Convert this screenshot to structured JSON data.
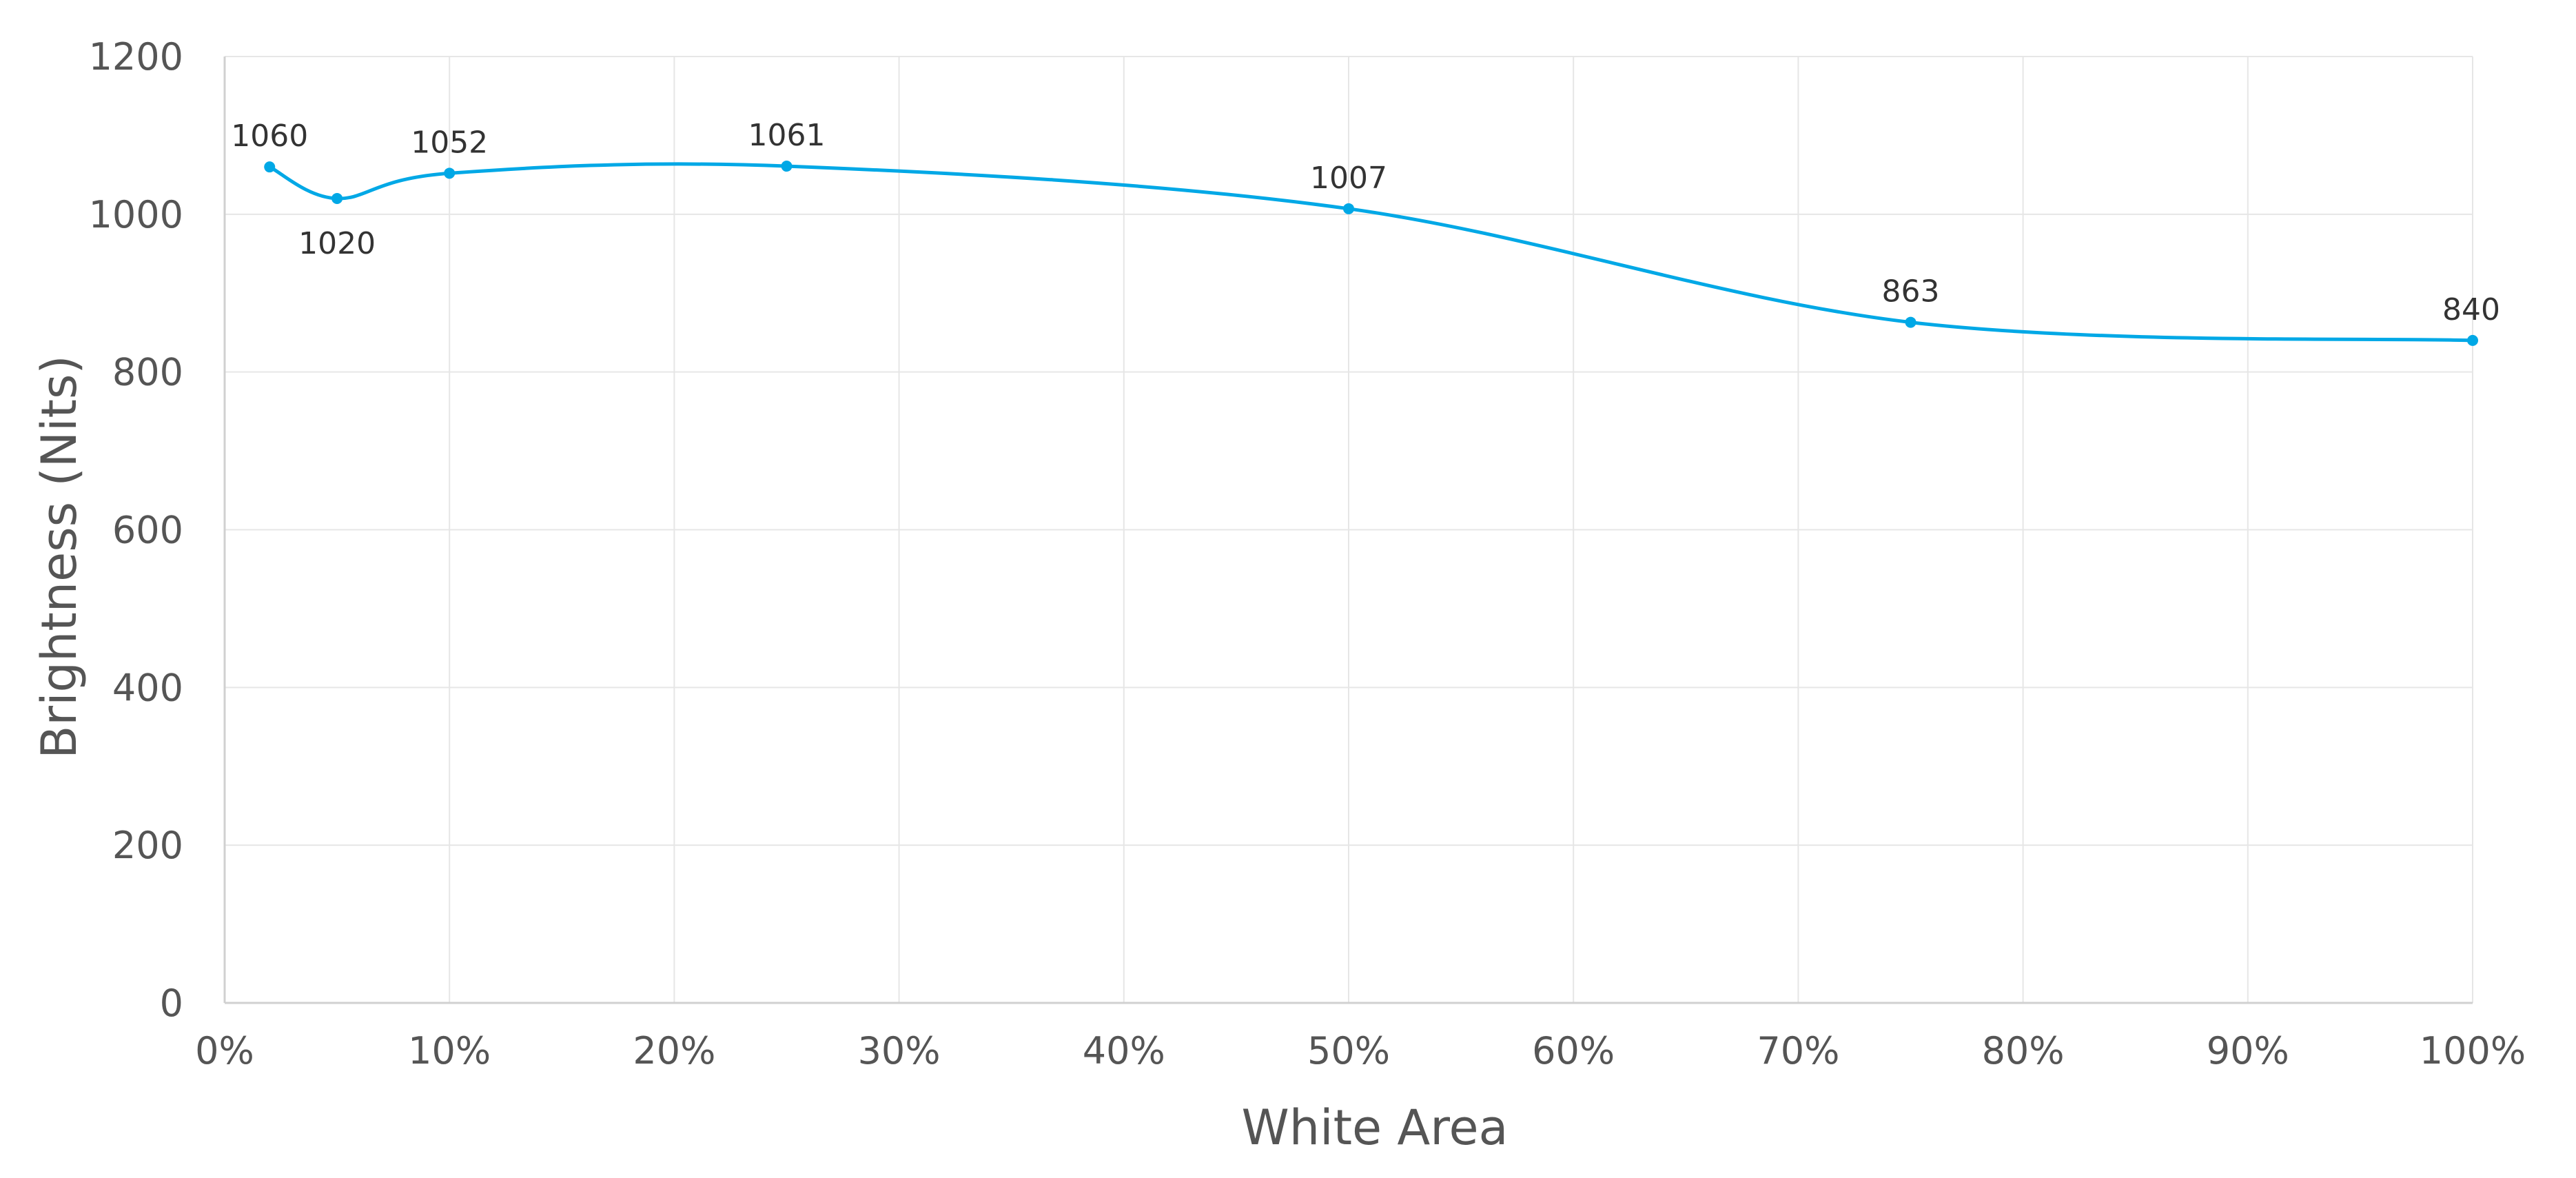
{
  "chart_data": {
    "type": "line",
    "title": "",
    "xlabel": "White Area",
    "ylabel": "Brightness (Nits)",
    "xlim": [
      0,
      100
    ],
    "ylim": [
      0,
      1200
    ],
    "x_ticks": [
      0,
      10,
      20,
      30,
      40,
      50,
      60,
      70,
      80,
      90,
      100
    ],
    "x_tick_labels": [
      "0%",
      "10%",
      "20%",
      "30%",
      "40%",
      "50%",
      "60%",
      "70%",
      "80%",
      "90%",
      "100%"
    ],
    "y_ticks": [
      0,
      200,
      400,
      600,
      800,
      1000,
      1200
    ],
    "y_tick_labels": [
      "0",
      "200",
      "400",
      "600",
      "800",
      "1000",
      "1200"
    ],
    "grid": true,
    "smooth": true,
    "legend": "none",
    "series": [
      {
        "color": "#00a8e6",
        "x": [
          2,
          5,
          10,
          25,
          50,
          75,
          100
        ],
        "values": [
          1060,
          1020,
          1052,
          1061,
          1007,
          863,
          840
        ],
        "data_labels": [
          "1060",
          "1020",
          "1052",
          "1061",
          "1007",
          "863",
          "840"
        ],
        "label_positions": [
          "above",
          "below",
          "above",
          "above",
          "above",
          "above",
          "above"
        ]
      }
    ],
    "colors": {
      "grid": "#e6e6e6",
      "axis": "#d0d0d0",
      "text": "#555555"
    }
  }
}
